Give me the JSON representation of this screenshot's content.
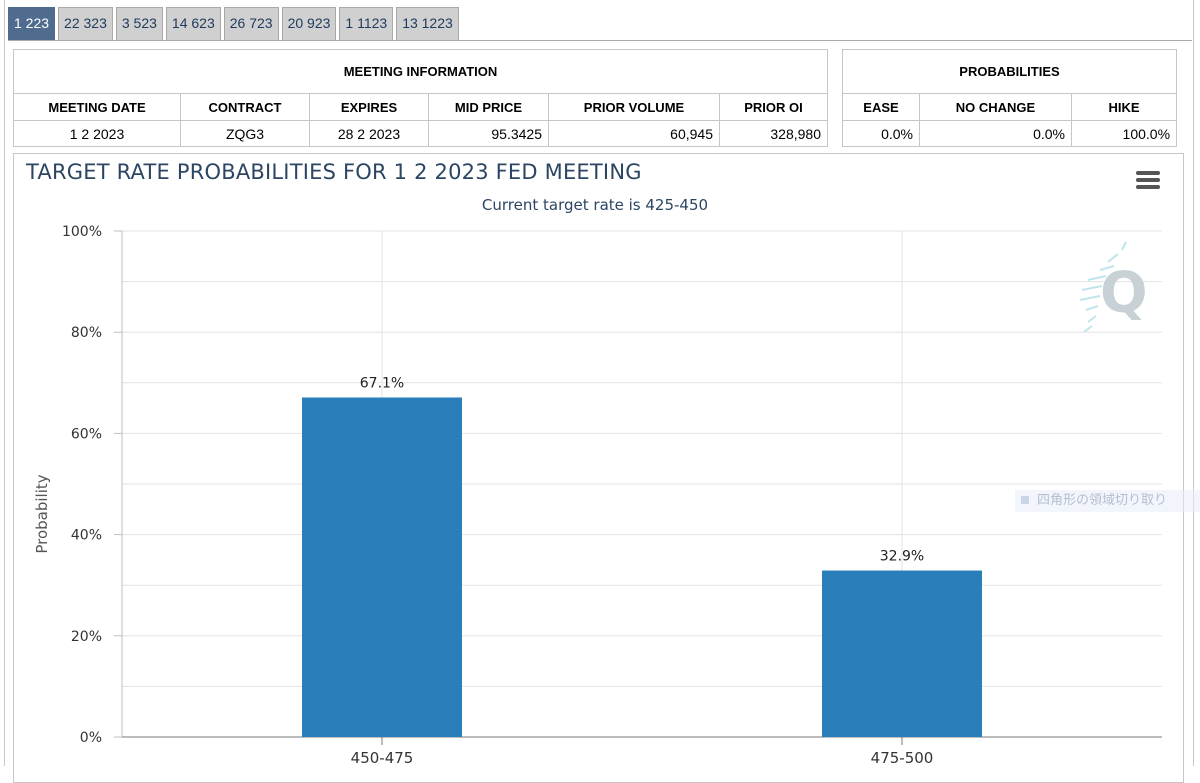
{
  "tabs": [
    "1 223",
    "22 323",
    "3 523",
    "14 623",
    "26 723",
    "20 923",
    "1 1123",
    "13 1223"
  ],
  "active_tab": 0,
  "meeting_info": {
    "title": "MEETING INFORMATION",
    "headers": [
      "MEETING DATE",
      "CONTRACT",
      "EXPIRES",
      "MID PRICE",
      "PRIOR VOLUME",
      "PRIOR OI"
    ],
    "row": [
      "1 2 2023",
      "ZQG3",
      "28 2 2023",
      "95.3425",
      "60,945",
      "328,980"
    ]
  },
  "probabilities": {
    "title": "PROBABILITIES",
    "headers": [
      "EASE",
      "NO CHANGE",
      "HIKE"
    ],
    "row": [
      "0.0%",
      "0.0%",
      "100.0%"
    ]
  },
  "chart": {
    "title": "TARGET RATE PROBABILITIES FOR 1 2 2023 FED MEETING",
    "subtitle": "Current target rate is 425-450",
    "menu_icon": "hamburger-menu-icon",
    "watermark_icon": "cme-q-logo",
    "bar_color": "#2a7fba",
    "overlay_text": "四角形の領域切り取り"
  },
  "chart_data": {
    "type": "bar",
    "title": "TARGET RATE PROBABILITIES FOR 1 2 2023 FED MEETING",
    "subtitle": "Current target rate is 425-450",
    "categories": [
      "450-475",
      "475-500"
    ],
    "values": [
      67.1,
      32.9
    ],
    "data_labels": [
      "67.1%",
      "32.9%"
    ],
    "xlabel": "",
    "ylabel": "Probability",
    "ylim": [
      0,
      100
    ],
    "yticks": [
      "0%",
      "20%",
      "40%",
      "60%",
      "80%",
      "100%"
    ],
    "grid": true
  }
}
